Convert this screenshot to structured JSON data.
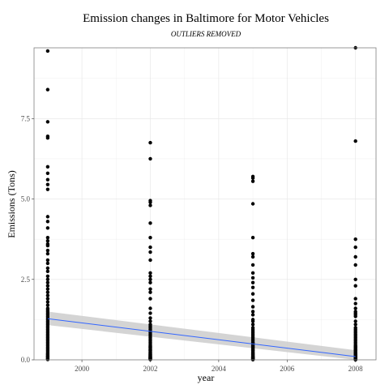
{
  "chart_data": {
    "type": "scatter",
    "title": "Emission changes in Baltimore for Motor Vehicles",
    "subtitle": "OUTLIERS REMOVED",
    "xlabel": "year",
    "ylabel": "Emissions (Tons)",
    "xlim": [
      1998.6,
      2008.6
    ],
    "ylim": [
      0,
      9.7
    ],
    "x_ticks": [
      2000,
      2002,
      2004,
      2006,
      2008
    ],
    "x_tick_labels": [
      "2000",
      "2002",
      "2004",
      "2006",
      "2008"
    ],
    "y_ticks": [
      0,
      2.5,
      5,
      7.5
    ],
    "y_tick_labels": [
      "0.0",
      "2.5",
      "5.0",
      "7.5"
    ],
    "grid": true,
    "series": [
      {
        "x": [
          1999,
          1999,
          1999,
          1999,
          1999,
          1999,
          1999,
          1999,
          1999,
          1999,
          1999,
          1999,
          1999,
          1999,
          1999,
          1999,
          1999,
          1999,
          1999,
          1999,
          1999,
          1999,
          1999,
          1999,
          1999,
          1999,
          1999,
          1999,
          1999,
          1999,
          1999,
          1999,
          1999,
          1999,
          1999,
          1999,
          1999,
          1999,
          1999,
          1999,
          1999,
          1999,
          1999,
          1999,
          1999,
          1999,
          1999,
          1999,
          1999,
          1999,
          1999,
          1999,
          1999,
          1999,
          1999,
          1999,
          1999,
          1999,
          1999,
          1999,
          1999,
          1999,
          1999,
          1999,
          1999,
          1999,
          1999,
          1999,
          1999,
          1999,
          2002,
          2002,
          2002,
          2002,
          2002,
          2002,
          2002,
          2002,
          2002,
          2002,
          2002,
          2002,
          2002,
          2002,
          2002,
          2002,
          2002,
          2002,
          2002,
          2002,
          2002,
          2002,
          2002,
          2002,
          2002,
          2002,
          2002,
          2002,
          2002,
          2002,
          2002,
          2002,
          2002,
          2002,
          2002,
          2002,
          2002,
          2002,
          2002,
          2002,
          2002,
          2002,
          2002,
          2002,
          2002,
          2002,
          2002,
          2002,
          2002,
          2002,
          2002,
          2002,
          2002,
          2002,
          2002,
          2002,
          2002,
          2002,
          2002,
          2002,
          2005,
          2005,
          2005,
          2005,
          2005,
          2005,
          2005,
          2005,
          2005,
          2005,
          2005,
          2005,
          2005,
          2005,
          2005,
          2005,
          2005,
          2005,
          2005,
          2005,
          2005,
          2005,
          2005,
          2005,
          2005,
          2005,
          2005,
          2005,
          2005,
          2005,
          2005,
          2005,
          2005,
          2005,
          2005,
          2005,
          2005,
          2005,
          2005,
          2005,
          2005,
          2005,
          2005,
          2005,
          2005,
          2005,
          2005,
          2005,
          2005,
          2005,
          2005,
          2005,
          2005,
          2005,
          2005,
          2005,
          2005,
          2005,
          2005,
          2005,
          2008,
          2008,
          2008,
          2008,
          2008,
          2008,
          2008,
          2008,
          2008,
          2008,
          2008,
          2008,
          2008,
          2008,
          2008,
          2008,
          2008,
          2008,
          2008,
          2008,
          2008,
          2008,
          2008,
          2008,
          2008,
          2008,
          2008,
          2008,
          2008,
          2008,
          2008,
          2008,
          2008,
          2008,
          2008,
          2008,
          2008,
          2008,
          2008,
          2008,
          2008,
          2008,
          2008,
          2008,
          2008,
          2008,
          2008,
          2008,
          2008,
          2008,
          2008,
          2008,
          2008,
          2008,
          2008,
          2008,
          2008,
          2008,
          2008,
          2008
        ],
        "y": [
          9.6,
          8.4,
          7.4,
          6.95,
          6.9,
          6.0,
          5.8,
          5.6,
          5.45,
          5.3,
          4.45,
          4.3,
          4.1,
          3.8,
          3.7,
          3.6,
          3.55,
          3.4,
          3.3,
          3.1,
          3.0,
          2.85,
          2.75,
          2.6,
          2.5,
          2.4,
          2.3,
          2.2,
          2.1,
          2.0,
          1.9,
          1.8,
          1.7,
          1.6,
          1.55,
          1.5,
          1.45,
          1.4,
          1.35,
          1.3,
          1.25,
          1.2,
          1.15,
          1.1,
          1.05,
          1.0,
          0.95,
          0.9,
          0.85,
          0.8,
          0.75,
          0.7,
          0.65,
          0.6,
          0.55,
          0.5,
          0.45,
          0.4,
          0.35,
          0.3,
          0.25,
          0.2,
          0.18,
          0.15,
          0.12,
          0.1,
          0.08,
          0.05,
          0.03,
          0.01,
          6.75,
          6.25,
          4.95,
          4.9,
          4.8,
          4.25,
          3.8,
          3.5,
          3.35,
          3.1,
          2.7,
          2.6,
          2.5,
          2.4,
          2.2,
          2.1,
          1.9,
          1.6,
          1.45,
          1.3,
          1.2,
          1.1,
          1.05,
          1.0,
          0.95,
          0.9,
          0.85,
          0.8,
          0.75,
          0.7,
          0.65,
          0.6,
          0.55,
          0.5,
          0.45,
          0.42,
          0.4,
          0.38,
          0.35,
          0.32,
          0.3,
          0.28,
          0.25,
          0.22,
          0.2,
          0.18,
          0.16,
          0.15,
          0.13,
          0.12,
          0.1,
          0.09,
          0.08,
          0.07,
          0.06,
          0.05,
          0.04,
          0.03,
          0.02,
          0.01,
          5.7,
          5.65,
          5.55,
          4.85,
          3.8,
          3.3,
          3.2,
          2.95,
          2.7,
          2.55,
          2.4,
          2.25,
          2.05,
          1.85,
          1.65,
          1.5,
          1.4,
          1.25,
          1.2,
          1.1,
          1.0,
          0.95,
          0.9,
          0.85,
          0.8,
          0.75,
          0.7,
          0.65,
          0.6,
          0.55,
          0.52,
          0.5,
          0.48,
          0.45,
          0.42,
          0.4,
          0.38,
          0.35,
          0.32,
          0.3,
          0.28,
          0.25,
          0.22,
          0.2,
          0.18,
          0.16,
          0.14,
          0.12,
          0.1,
          0.09,
          0.08,
          0.07,
          0.06,
          0.05,
          0.04,
          0.03,
          0.02,
          0.015,
          0.01,
          0.005,
          9.7,
          6.8,
          3.75,
          3.5,
          3.2,
          2.95,
          2.5,
          2.3,
          1.9,
          1.75,
          1.6,
          1.5,
          1.45,
          1.4,
          1.35,
          1.2,
          1.1,
          1.0,
          0.95,
          0.9,
          0.85,
          0.8,
          0.75,
          0.7,
          0.65,
          0.6,
          0.55,
          0.5,
          0.45,
          0.42,
          0.4,
          0.38,
          0.35,
          0.32,
          0.3,
          0.28,
          0.25,
          0.22,
          0.2,
          0.18,
          0.16,
          0.15,
          0.14,
          0.12,
          0.11,
          0.1,
          0.09,
          0.08,
          0.07,
          0.06,
          0.05,
          0.045,
          0.04,
          0.03,
          0.025,
          0.02,
          0.015,
          0.01,
          0.005,
          0.002
        ]
      }
    ],
    "trend_line": {
      "method": "linear",
      "x": [
        1999,
        2008
      ],
      "y": [
        1.28,
        0.1
      ],
      "ci_lower": [
        1.08,
        0.0
      ],
      "ci_upper": [
        1.5,
        0.3
      ]
    },
    "colors": {
      "point": "#000000",
      "trend": "#3366ff",
      "ci_band": "#cccccc",
      "grid": "#e5e5e5",
      "panel_border": "#7f7f7f"
    }
  }
}
